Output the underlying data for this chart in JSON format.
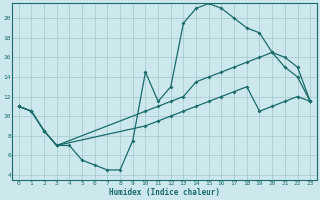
{
  "xlabel": "Humidex (Indice chaleur)",
  "bg_color": "#cce8ec",
  "grid_color": "#aaccd0",
  "line_color": "#1a6b6b",
  "xlim": [
    -0.5,
    23.5
  ],
  "ylim": [
    3.5,
    21.5
  ],
  "xticks": [
    0,
    1,
    2,
    3,
    4,
    5,
    6,
    7,
    8,
    9,
    10,
    11,
    12,
    13,
    14,
    15,
    16,
    17,
    18,
    19,
    20,
    21,
    22,
    23
  ],
  "yticks": [
    4,
    6,
    8,
    10,
    12,
    14,
    16,
    18,
    20
  ],
  "line1_x": [
    0,
    1,
    2,
    3,
    4,
    5,
    6,
    7,
    8,
    9,
    10,
    11,
    12,
    13,
    14,
    15,
    16,
    17,
    18,
    19,
    20,
    21,
    22,
    23
  ],
  "line1_y": [
    11,
    10.5,
    8.5,
    7,
    7,
    5.5,
    5,
    4.5,
    4.5,
    7.5,
    14.5,
    11.5,
    13,
    19.5,
    21,
    21.5,
    21,
    20,
    19,
    18.5,
    16.5,
    15,
    14,
    11.5
  ],
  "line2_x": [
    0,
    1,
    2,
    3,
    10,
    11,
    12,
    13,
    14,
    15,
    16,
    17,
    18,
    19,
    20,
    21,
    22,
    23
  ],
  "line2_y": [
    11,
    10.5,
    8.5,
    7,
    10.5,
    11,
    11.5,
    12,
    13.5,
    14,
    14.5,
    15,
    15.5,
    16,
    16.5,
    16,
    15,
    11.5
  ],
  "line3_x": [
    0,
    1,
    2,
    3,
    10,
    11,
    12,
    13,
    14,
    15,
    16,
    17,
    18,
    19,
    20,
    21,
    22,
    23
  ],
  "line3_y": [
    11,
    10.5,
    8.5,
    7,
    9,
    9.5,
    10,
    10.5,
    11,
    11.5,
    12,
    12.5,
    13,
    10.5,
    11,
    11.5,
    12,
    11.5
  ]
}
